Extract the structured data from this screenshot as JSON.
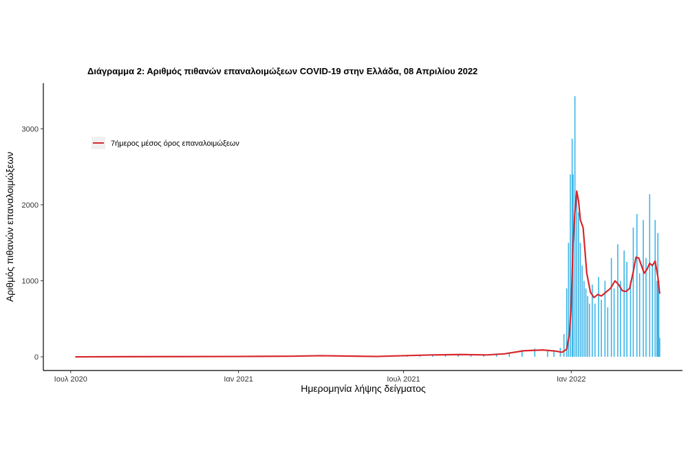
{
  "chart_data": {
    "type": "bar",
    "title": "Διάγραμμα 2: Αριθμός πιθανών επαναλοιμώξεων COVID-19 στην Ελλάδα, 08 Απριλίου 2022",
    "xlabel": "Ημερομηνία λήψης δείγματος",
    "ylabel": "Αριθμός πιθανών επαναλοιμώξεων",
    "x_range": [
      "2020-06-01",
      "2022-05-03"
    ],
    "ylim": [
      -180,
      3600
    ],
    "y_ticks": [
      0,
      1000,
      2000,
      3000
    ],
    "x_ticks": [
      {
        "date": "2020-07-01",
        "label": "Ιουλ 2020"
      },
      {
        "date": "2021-01-01",
        "label": "Ιαν 2021"
      },
      {
        "date": "2021-07-01",
        "label": "Ιουλ 2021"
      },
      {
        "date": "2022-01-01",
        "label": "Ιαν 2022"
      }
    ],
    "grid": false,
    "legend": {
      "position": "top-left",
      "entries": [
        "7ήμερος μέσος όρος επαναλοιμώξεων"
      ]
    },
    "colors": {
      "bars": "#3cb4e6",
      "line": "#d7262b"
    },
    "series": [
      {
        "type": "bar",
        "note": "daily counts, weekly-sampled representative values",
        "dates": [
          "2021-07-05",
          "2021-07-19",
          "2021-08-02",
          "2021-08-16",
          "2021-08-30",
          "2021-09-13",
          "2021-09-27",
          "2021-10-11",
          "2021-10-25",
          "2021-11-08",
          "2021-11-22",
          "2021-12-06",
          "2021-12-13",
          "2021-12-20",
          "2021-12-24",
          "2021-12-27",
          "2021-12-29",
          "2021-12-31",
          "2022-01-02",
          "2022-01-03",
          "2022-01-05",
          "2022-01-07",
          "2022-01-09",
          "2022-01-11",
          "2022-01-13",
          "2022-01-15",
          "2022-01-17",
          "2022-01-19",
          "2022-01-21",
          "2022-01-24",
          "2022-01-27",
          "2022-01-31",
          "2022-02-03",
          "2022-02-07",
          "2022-02-10",
          "2022-02-14",
          "2022-02-17",
          "2022-02-21",
          "2022-02-24",
          "2022-02-28",
          "2022-03-03",
          "2022-03-07",
          "2022-03-10",
          "2022-03-14",
          "2022-03-17",
          "2022-03-21",
          "2022-03-24",
          "2022-03-28",
          "2022-03-31",
          "2022-04-03",
          "2022-04-05",
          "2022-04-06",
          "2022-04-07",
          "2022-04-08"
        ],
        "values": [
          10,
          15,
          20,
          25,
          30,
          30,
          35,
          45,
          60,
          90,
          110,
          80,
          90,
          120,
          300,
          900,
          1500,
          2400,
          2870,
          2400,
          3430,
          2100,
          1900,
          1500,
          1200,
          1000,
          900,
          800,
          700,
          950,
          700,
          1050,
          750,
          1000,
          650,
          1300,
          900,
          1480,
          1000,
          1400,
          1250,
          1000,
          1700,
          1880,
          1100,
          1800,
          1300,
          2140,
          1200,
          1800,
          1000,
          1630,
          1000,
          250
        ]
      },
      {
        "type": "line",
        "name": "7ήμερος μέσος όρος επαναλοιμώξεων",
        "dates": [
          "2020-07-06",
          "2020-09-01",
          "2020-11-01",
          "2021-01-01",
          "2021-03-01",
          "2021-04-01",
          "2021-05-01",
          "2021-06-01",
          "2021-07-01",
          "2021-08-01",
          "2021-09-01",
          "2021-10-01",
          "2021-10-20",
          "2021-11-10",
          "2021-12-01",
          "2021-12-15",
          "2021-12-22",
          "2021-12-27",
          "2021-12-30",
          "2022-01-01",
          "2022-01-03",
          "2022-01-05",
          "2022-01-07",
          "2022-01-09",
          "2022-01-11",
          "2022-01-14",
          "2022-01-18",
          "2022-01-22",
          "2022-01-26",
          "2022-01-30",
          "2022-02-03",
          "2022-02-08",
          "2022-02-13",
          "2022-02-18",
          "2022-02-22",
          "2022-02-26",
          "2022-03-02",
          "2022-03-06",
          "2022-03-10",
          "2022-03-13",
          "2022-03-16",
          "2022-03-19",
          "2022-03-22",
          "2022-03-25",
          "2022-03-28",
          "2022-03-31",
          "2022-04-03",
          "2022-04-06",
          "2022-04-08"
        ],
        "values": [
          0,
          2,
          3,
          5,
          8,
          15,
          10,
          5,
          15,
          25,
          30,
          25,
          40,
          80,
          90,
          75,
          60,
          100,
          300,
          700,
          1500,
          1900,
          2180,
          2050,
          1800,
          1700,
          1100,
          850,
          780,
          820,
          800,
          850,
          900,
          1000,
          950,
          870,
          860,
          900,
          1120,
          1310,
          1300,
          1200,
          1100,
          1150,
          1230,
          1200,
          1260,
          1050,
          830
        ]
      }
    ]
  }
}
